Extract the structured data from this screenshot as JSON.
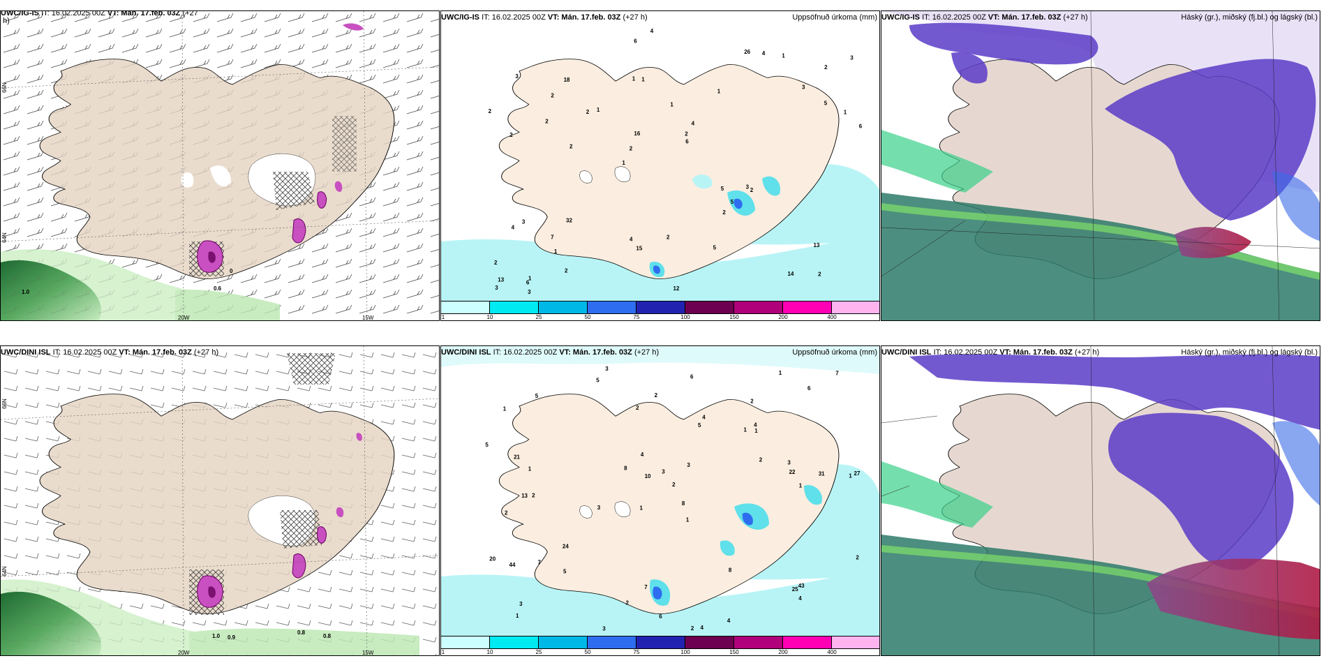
{
  "panels": {
    "p1": {
      "model": "UWC/IG-IS",
      "it": "IT: 16.02.2025 00Z",
      "vt_label": "VT:",
      "vt": "Mán. 17.feb. 03Z",
      "lead": "(+27",
      "lead2": "h)"
    },
    "p2": {
      "model": "UWC/IG-IS",
      "it": "IT: 16.02.2025 00Z",
      "vt_label": "VT:",
      "vt": "Mán. 17.feb. 03Z",
      "lead": "(+27 h)",
      "right_title": "Uppsöfnuð úrkoma (mm)"
    },
    "p3": {
      "model": "UWC/IG-IS",
      "it": "IT: 16.02.2025 00Z",
      "vt_label": "VT:",
      "vt": "Mán. 17.feb. 03Z",
      "lead": "(+27 h)",
      "right_title": "Háský (gr.), miðský (fj.bl.) og lágský (bl.)"
    },
    "p4": {
      "model": "UWC/DINI ISL",
      "it": "IT: 16.02.2025 00Z",
      "vt_label": "VT:",
      "vt": "Mán. 17.feb. 03Z",
      "lead": "(+27 h)"
    },
    "p5": {
      "model": "UWC/DINI ISL",
      "it": "IT: 16.02.2025 00Z",
      "vt_label": "VT:",
      "vt": "Mán. 17.feb. 03Z",
      "lead": "(+27 h)",
      "right_title": "Uppsöfnuð úrkoma (mm)"
    },
    "p6": {
      "model": "UWC/DINI ISL",
      "it": "IT: 16.02.2025 00Z",
      "vt_label": "VT:",
      "vt": "Mán. 17.feb. 03Z",
      "lead": "(+27 h)",
      "right_title": "Háský (gr.), miðský (fj.bl.) og lágský (bl.)"
    }
  },
  "axis_labels": {
    "lon1": "20W",
    "lon2": "15W",
    "lat1": "66N",
    "lat2": "64N"
  },
  "wind_values": {
    "p1_a": "0.6",
    "p1_b": "1.0",
    "p1_c": "0",
    "p4_a": "0.8",
    "p4_b": "0.8",
    "p4_c": "1.0",
    "p4_d": "0.9"
  },
  "precip_legend": {
    "ticks": [
      "1",
      "10",
      "25",
      "50",
      "75",
      "100",
      "150",
      "200",
      "400"
    ],
    "colors": [
      "#ccffff",
      "#00eaf2",
      "#00b8e8",
      "#2f6df0",
      "#2222b0",
      "#6d0050",
      "#b0007a",
      "#ff00b4",
      "#ffb4f0"
    ]
  },
  "colors": {
    "land": "#fbeee0",
    "land_dark": "#eadccd",
    "cyan_light": "#b8f4f6",
    "violet": "#6a3cc8",
    "low_cloud": "#58a07a",
    "red_cloud": "#a81a4a"
  },
  "precip_numbers_top": [
    "2",
    "2",
    "2",
    "1",
    "1",
    "1",
    "1",
    "1",
    "3",
    "1",
    "2",
    "1",
    "1",
    "4",
    "2",
    "3",
    "6",
    "6",
    "5",
    "5",
    "2",
    "4",
    "16",
    "18",
    "26",
    "32",
    "14",
    "13",
    "3",
    "12",
    "2",
    "2",
    "2",
    "2",
    "1",
    "2",
    "13",
    "15",
    "6",
    "4",
    "3",
    "3",
    "5",
    "5",
    "7",
    "3",
    "3",
    "2",
    "1",
    "4",
    "2",
    "2",
    "2",
    "4",
    "6"
  ],
  "precip_numbers_bottom": [
    "3",
    "2",
    "1",
    "1",
    "1",
    "2",
    "1",
    "1",
    "2",
    "5",
    "2",
    "1",
    "5",
    "3",
    "2",
    "4",
    "7",
    "1",
    "2",
    "24",
    "1",
    "13",
    "27",
    "31",
    "20",
    "21",
    "10",
    "22",
    "43",
    "44",
    "25",
    "4",
    "7",
    "8",
    "8",
    "2",
    "3",
    "2",
    "7",
    "2",
    "3",
    "3",
    "4",
    "5",
    "6",
    "1",
    "4",
    "4",
    "5",
    "8",
    "2",
    "1",
    "3",
    "6",
    "6",
    "5",
    "4",
    "3"
  ]
}
